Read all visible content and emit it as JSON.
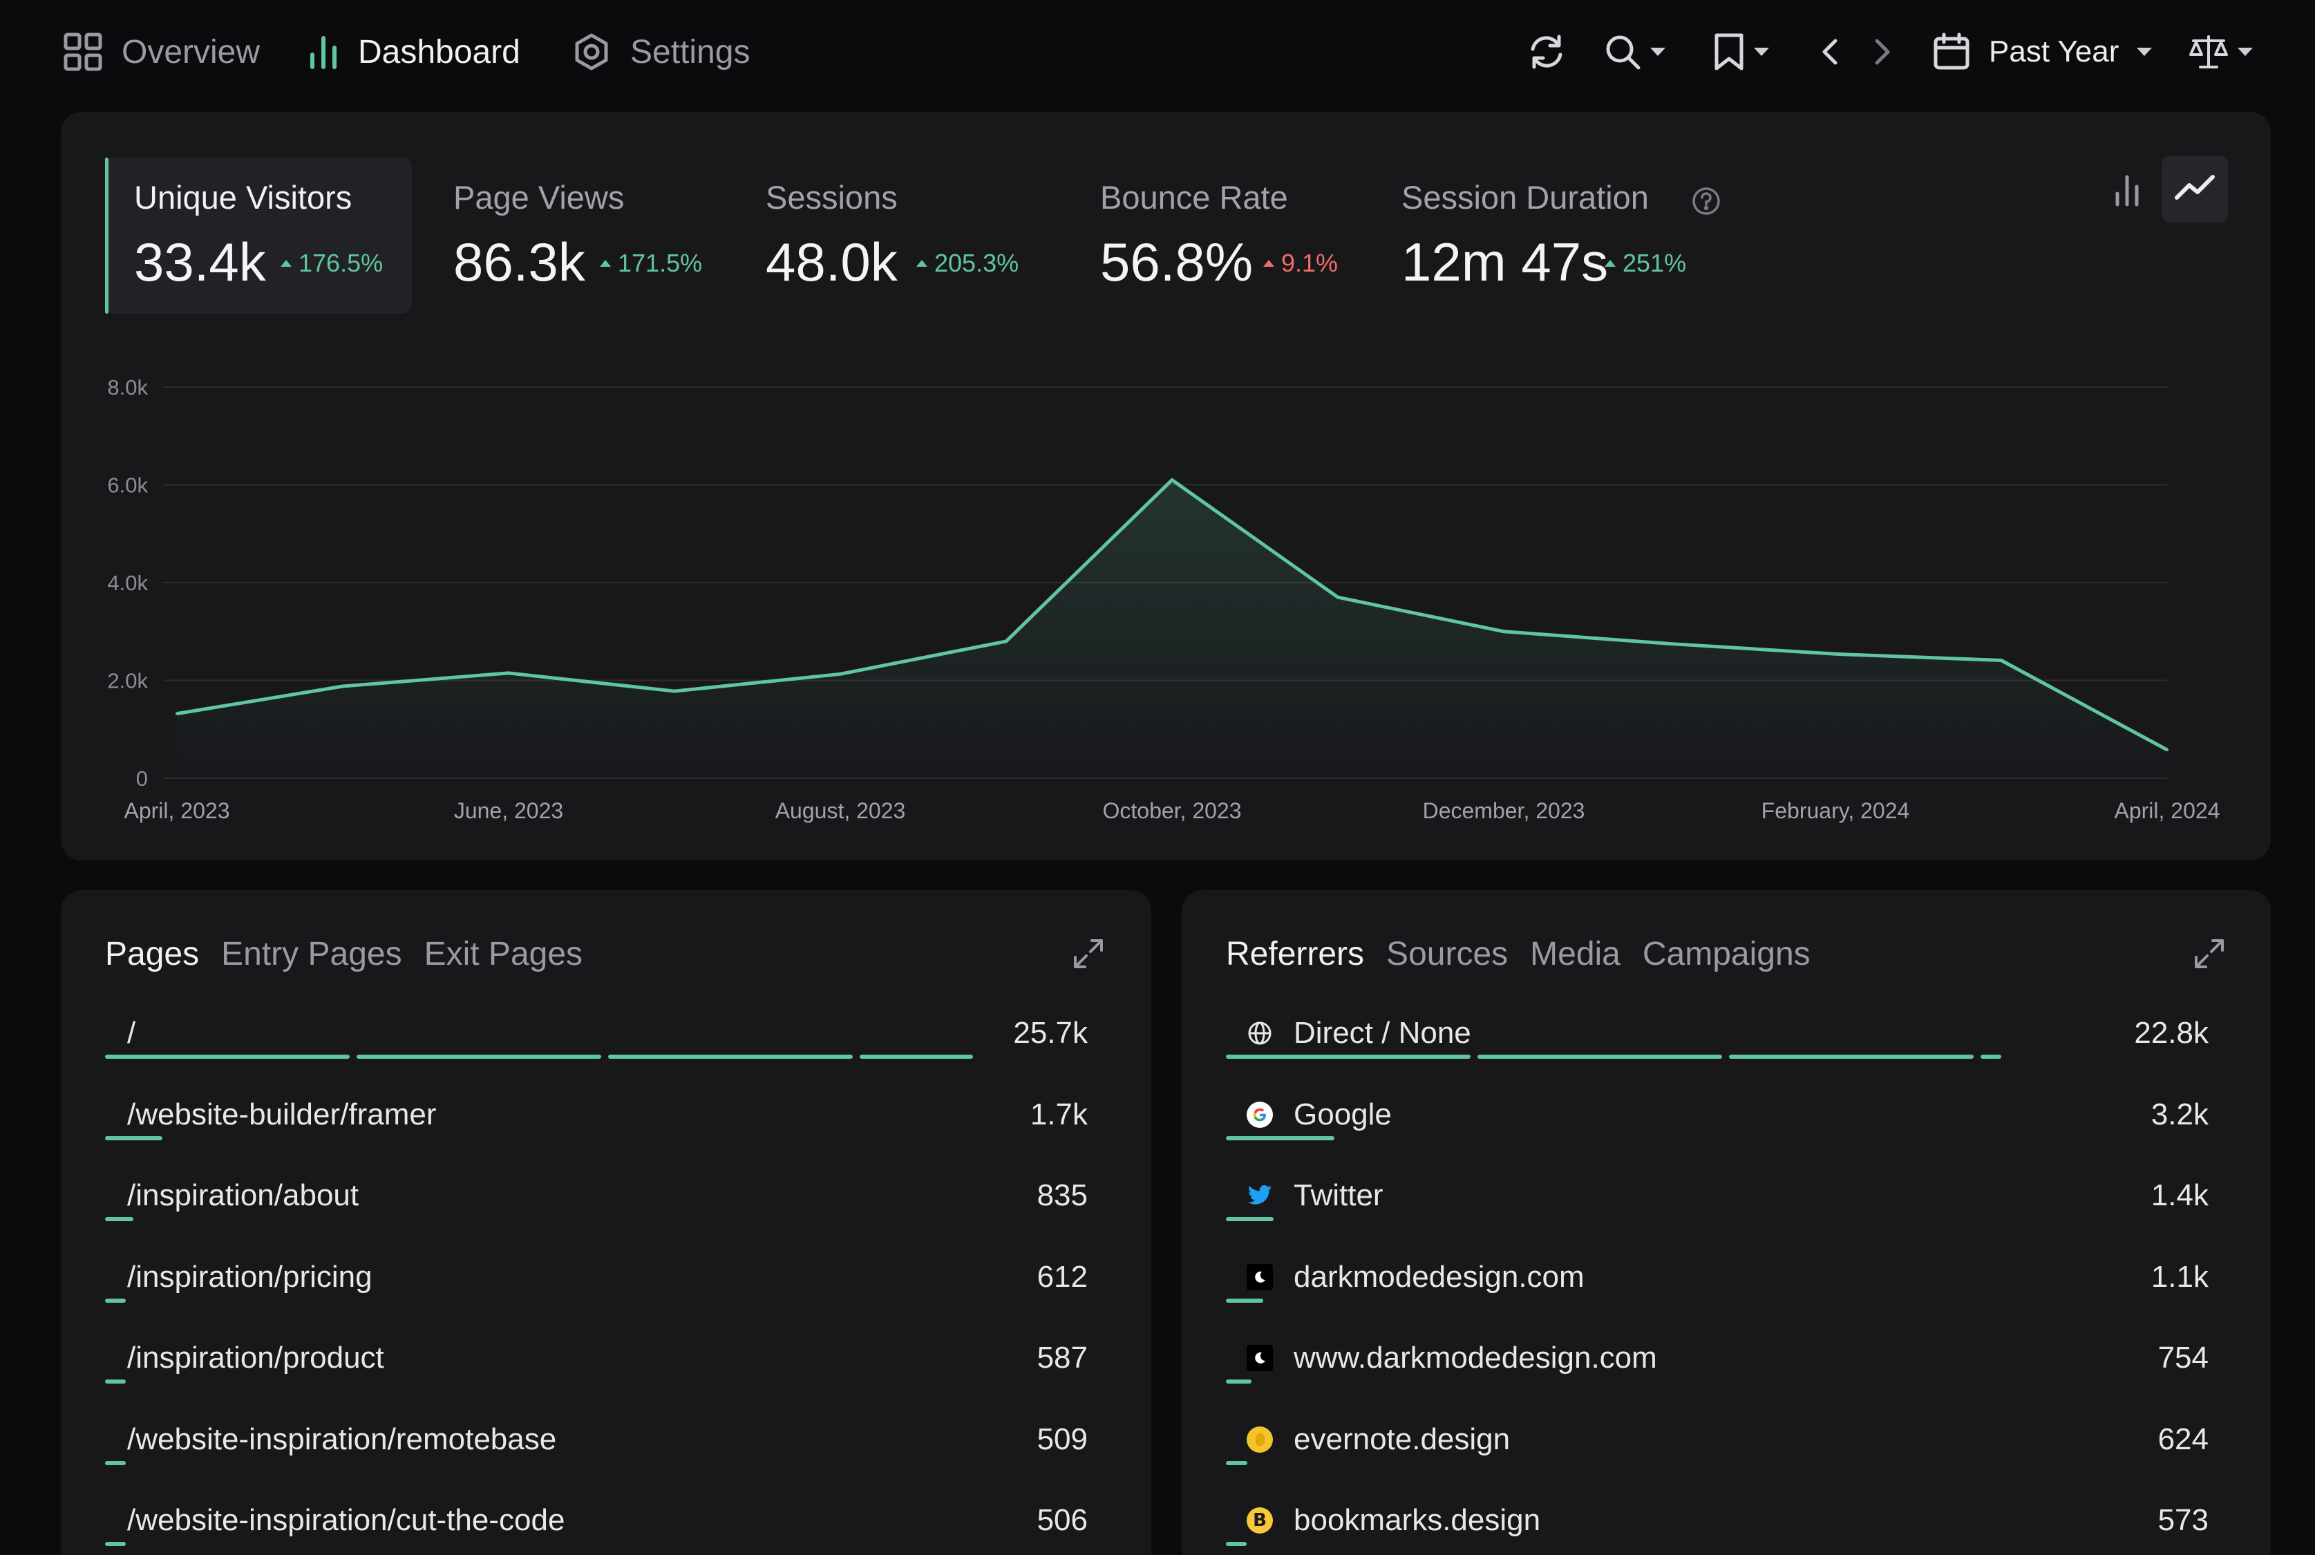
{
  "nav": {
    "overview": "Overview",
    "dashboard": "Dashboard",
    "settings": "Settings"
  },
  "toolbar": {
    "date_range": "Past Year",
    "icons": [
      "refresh-icon",
      "search-icon",
      "bookmark-icon",
      "chevron-left-icon",
      "chevron-right-icon",
      "calendar-icon",
      "scale-icon"
    ]
  },
  "metrics": [
    {
      "label": "Unique Visitors",
      "value": "33.4k",
      "change": "176.5%",
      "direction": "up",
      "color": "#5fc6a0"
    },
    {
      "label": "Page Views",
      "value": "86.3k",
      "change": "171.5%",
      "direction": "up",
      "color": "#5fc6a0"
    },
    {
      "label": "Sessions",
      "value": "48.0k",
      "change": "205.3%",
      "direction": "up",
      "color": "#5fc6a0"
    },
    {
      "label": "Bounce Rate",
      "value": "56.8%",
      "change": "9.1%",
      "direction": "up",
      "color": "#ef6b6b"
    },
    {
      "label": "Session Duration",
      "value": "12m 47s",
      "change": "251%",
      "direction": "up",
      "color": "#5fc6a0"
    }
  ],
  "chart_data": {
    "type": "area",
    "x": [
      "April, 2023",
      "May, 2023",
      "June, 2023",
      "July, 2023",
      "August, 2023",
      "September, 2023",
      "October, 2023",
      "November, 2023",
      "December, 2023",
      "January, 2024",
      "February, 2024",
      "March, 2024",
      "April, 2024"
    ],
    "x_tick_labels": [
      "April, 2023",
      "June, 2023",
      "August, 2023",
      "October, 2023",
      "December, 2023",
      "February, 2024",
      "April, 2024"
    ],
    "y_tick_labels": [
      "0",
      "2.0k",
      "4.0k",
      "6.0k",
      "8.0k"
    ],
    "values": [
      1320,
      1880,
      2150,
      1780,
      2130,
      2800,
      6100,
      3700,
      3000,
      2750,
      2540,
      2410,
      580
    ],
    "ylim": [
      0,
      8000
    ],
    "grid": true,
    "color": "#5fc6a0"
  },
  "pages": {
    "tabs": [
      "Pages",
      "Entry Pages",
      "Exit Pages"
    ],
    "rows": [
      {
        "label": "/",
        "value": "25.7k",
        "count": 25700
      },
      {
        "label": "/website-builder/framer",
        "value": "1.7k",
        "count": 1700
      },
      {
        "label": "/inspiration/about",
        "value": "835",
        "count": 835
      },
      {
        "label": "/inspiration/pricing",
        "value": "612",
        "count": 612
      },
      {
        "label": "/inspiration/product",
        "value": "587",
        "count": 587
      },
      {
        "label": "/website-inspiration/remotebase",
        "value": "509",
        "count": 509
      },
      {
        "label": "/website-inspiration/cut-the-code",
        "value": "506",
        "count": 506
      }
    ]
  },
  "referrers": {
    "tabs": [
      "Referrers",
      "Sources",
      "Media",
      "Campaigns"
    ],
    "rows": [
      {
        "label": "Direct / None",
        "value": "22.8k",
        "count": 22800,
        "icon": "globe-icon"
      },
      {
        "label": "Google",
        "value": "3.2k",
        "count": 3200,
        "icon": "google-icon"
      },
      {
        "label": "Twitter",
        "value": "1.4k",
        "count": 1400,
        "icon": "twitter-icon"
      },
      {
        "label": "darkmodedesign.com",
        "value": "1.1k",
        "count": 1100,
        "icon": "moon-icon"
      },
      {
        "label": "www.darkmodedesign.com",
        "value": "754",
        "count": 754,
        "icon": "moon-icon"
      },
      {
        "label": "evernote.design",
        "value": "624",
        "count": 624,
        "icon": "evernote-icon"
      },
      {
        "label": "bookmarks.design",
        "value": "573",
        "count": 573,
        "icon": "bookmarks-icon"
      }
    ]
  }
}
